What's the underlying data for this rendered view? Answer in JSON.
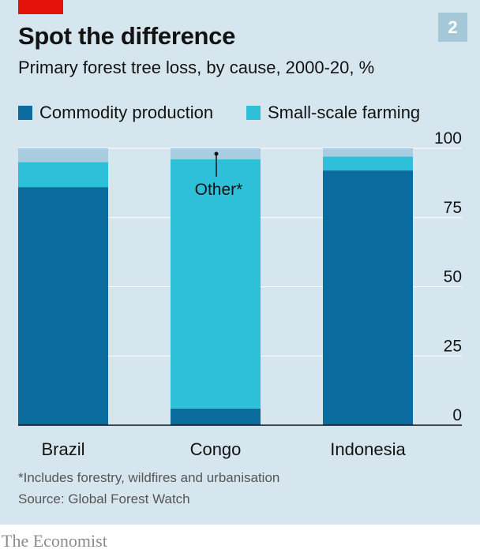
{
  "badge": "2",
  "title": "Spot the difference",
  "subtitle": "Primary forest tree loss, by cause, 2000-20, %",
  "legend": [
    {
      "label": "Commodity production",
      "color": "#0b6b9e"
    },
    {
      "label": "Small-scale farming",
      "color": "#2ec0d8"
    }
  ],
  "colors": {
    "other": "#a9cde0",
    "gridline": "#ffffff",
    "baseline": "#121212",
    "brand_red": "#e3120b"
  },
  "chart_data": {
    "type": "bar",
    "stacked": true,
    "categories": [
      "Brazil",
      "Congo",
      "Indonesia"
    ],
    "series": [
      {
        "name": "Commodity production",
        "values": [
          86,
          6,
          92
        ]
      },
      {
        "name": "Small-scale farming",
        "values": [
          9,
          90,
          5
        ]
      },
      {
        "name": "Other*",
        "values": [
          5,
          4,
          3
        ]
      }
    ],
    "ylim": [
      0,
      100
    ],
    "yticks": [
      0,
      25,
      50,
      75,
      100
    ],
    "y_axis_side": "right",
    "grid": true,
    "annotation": {
      "text": "Other*",
      "category": "Congo"
    }
  },
  "footnote": "*Includes forestry, wildfires and urbanisation",
  "source": "Source: Global Forest Watch",
  "brand": "The Economist"
}
